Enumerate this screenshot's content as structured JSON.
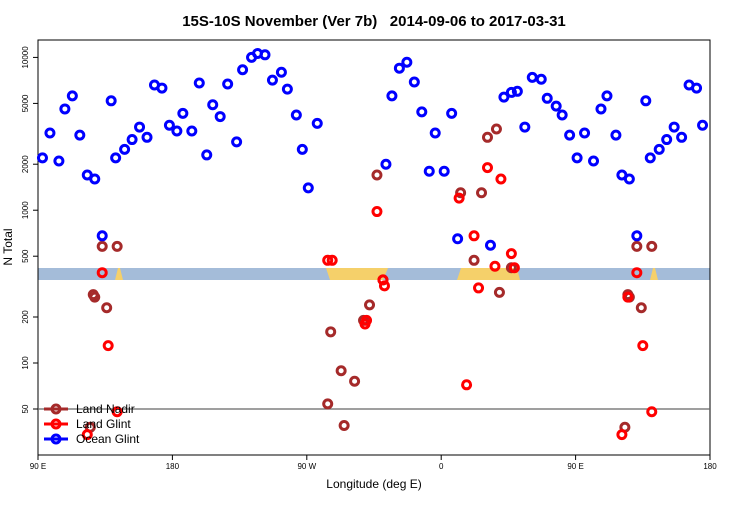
{
  "chart_data": {
    "type": "scatter",
    "title": "15S-10S November (Ver 7b)   2014-09-06 to 2017-03-31",
    "x_label": "Longitude (deg E)",
    "y_label": "N Total",
    "xlim": [
      90,
      540
    ],
    "xticks": [
      {
        "value": 90,
        "label": "90 E"
      },
      180,
      {
        "value": 270,
        "label": "90 W"
      },
      {
        "value": 360,
        "label": "0"
      },
      {
        "value": 450,
        "label": "90 E"
      },
      {
        "value": 540,
        "label": "180"
      }
    ],
    "ylim": [
      25,
      13000
    ],
    "log_y": true,
    "yticks": [
      50,
      100,
      200,
      500,
      1000,
      2000,
      5000,
      10000
    ],
    "hline": 50,
    "legend": "bottom-left",
    "series": [
      {
        "name": "Land Nadir",
        "color": "#a52a2a",
        "x": [
          133,
          143,
          127,
          128,
          136,
          125,
          317,
          321,
          312,
          308,
          286,
          293,
          302,
          284,
          295,
          373,
          387,
          391,
          397,
          382,
          399,
          407,
          491,
          501,
          485,
          486,
          494,
          483
        ],
        "values": [
          580,
          580,
          280,
          270,
          230,
          38,
          1700,
          350,
          240,
          190,
          160,
          89,
          76,
          54,
          39,
          1300,
          1300,
          3000,
          3400,
          470,
          290,
          420,
          580,
          580,
          280,
          270,
          230,
          38
        ]
      },
      {
        "name": "Land Glint",
        "color": "#ff0000",
        "x": [
          133,
          137,
          143,
          123,
          284,
          287,
          317,
          321,
          322,
          309,
          310,
          372,
          377,
          382,
          385,
          391,
          396,
          400,
          407,
          409,
          491,
          495,
          501,
          481,
          485
        ],
        "values": [
          390,
          130,
          48,
          34,
          470,
          470,
          980,
          350,
          320,
          180,
          190,
          1200,
          72,
          680,
          310,
          1900,
          430,
          1600,
          520,
          420,
          390,
          130,
          48,
          34,
          270
        ]
      },
      {
        "name": "Ocean Glint",
        "color": "#0000ff",
        "x": [
          93,
          98,
          104,
          108,
          113,
          118,
          123,
          128,
          133,
          139,
          142,
          148,
          153,
          158,
          163,
          168,
          173,
          178,
          183,
          187,
          193,
          198,
          203,
          207,
          212,
          217,
          223,
          227,
          233,
          237,
          242,
          247,
          253,
          257,
          263,
          267,
          271,
          277,
          323,
          327,
          332,
          337,
          342,
          347,
          352,
          356,
          362,
          367,
          371,
          393,
          402,
          407,
          411,
          416,
          421,
          427,
          431,
          437,
          441,
          446,
          451,
          456,
          462,
          467,
          471,
          477,
          481,
          486,
          491,
          497,
          500,
          506,
          511,
          516,
          521,
          526,
          531,
          535
        ],
        "values": [
          2200,
          3200,
          2100,
          4600,
          5600,
          3100,
          1700,
          1600,
          680,
          5200,
          2200,
          2500,
          2900,
          3500,
          3000,
          6600,
          6300,
          3600,
          3300,
          4300,
          3300,
          6800,
          2300,
          4900,
          4100,
          6700,
          2800,
          8300,
          10000,
          10600,
          10400,
          7100,
          8000,
          6200,
          4200,
          2500,
          1400,
          3700,
          2000,
          5600,
          8500,
          9300,
          6900,
          4400,
          1800,
          3200,
          1800,
          4300,
          650,
          590,
          5500,
          5900,
          6000,
          3500,
          7400,
          7200,
          5400,
          4800,
          4200,
          3100,
          2200,
          3200,
          2100,
          4600,
          5600,
          3100,
          1700,
          1600,
          680,
          5200,
          2200,
          2500,
          2900,
          3500,
          3000,
          6600,
          6300,
          3600
        ]
      }
    ]
  }
}
